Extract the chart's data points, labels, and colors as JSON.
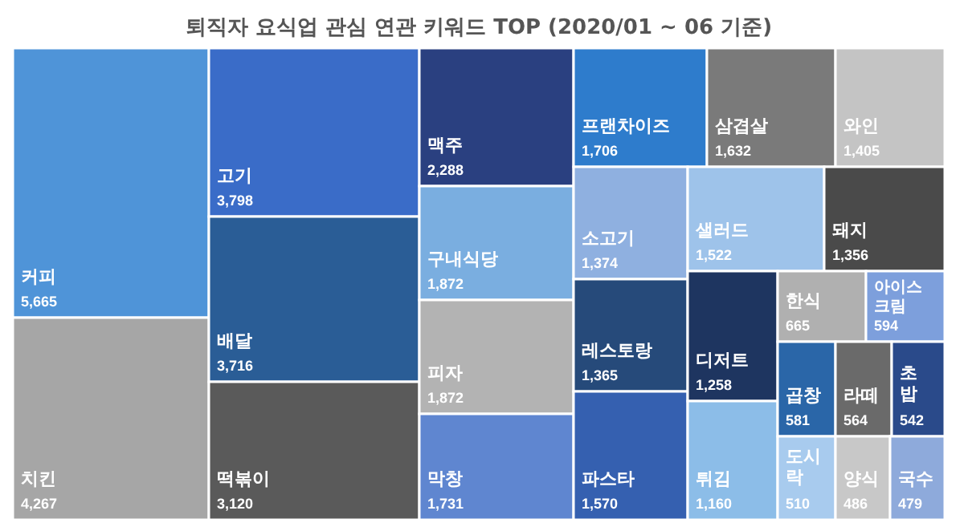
{
  "chart_data": {
    "type": "other",
    "title": "퇴직자 요식업 관심 연관 키워드 TOP (2020/01 ~ 06 기준)",
    "categories": [
      "커피",
      "치킨",
      "고기",
      "배달",
      "떡볶이",
      "맥주",
      "구내식당",
      "피자",
      "막창",
      "프랜차이즈",
      "삼겹살",
      "와인",
      "소고기",
      "레스토랑",
      "파스타",
      "샐러드",
      "돼지",
      "디저트",
      "튀김",
      "한식",
      "아이스크림",
      "곱창",
      "라떼",
      "초밥",
      "도시락",
      "양식",
      "국수"
    ],
    "values": [
      5665,
      4267,
      3798,
      3716,
      3120,
      2288,
      1872,
      1872,
      1731,
      1706,
      1632,
      1405,
      1374,
      1365,
      1570,
      1522,
      1356,
      1258,
      1160,
      665,
      594,
      581,
      564,
      542,
      510,
      486,
      479
    ],
    "colors": [
      "#4f94d8",
      "#a6a6a6",
      "#3a6cc8",
      "#2a5d96",
      "#5a5a5a",
      "#2a4080",
      "#7aaee0",
      "#b3b3b3",
      "#5f86d0",
      "#2e7ccc",
      "#7a7a7a",
      "#c4c4c4",
      "#8fb0e0",
      "#264a7a",
      "#3560b0",
      "#9ec3ea",
      "#4a4a4a",
      "#1e3560",
      "#8cbde8",
      "#b0b0b0",
      "#7d9fdc",
      "#2a66a8",
      "#6a6a6a",
      "#2a4a8a",
      "#a8cbee",
      "#c8c8c8",
      "#8eaadb"
    ],
    "value_labels": [
      "5,665",
      "4,267",
      "3,798",
      "3,716",
      "3,120",
      "2,288",
      "1,872",
      "1,872",
      "1,731",
      "1,706",
      "1,632",
      "1,405",
      "1,374",
      "1,365",
      "1,570",
      "1,522",
      "1,356",
      "1,258",
      "1,160",
      "665",
      "594",
      "581",
      "564",
      "542",
      "510",
      "486",
      "479"
    ]
  }
}
